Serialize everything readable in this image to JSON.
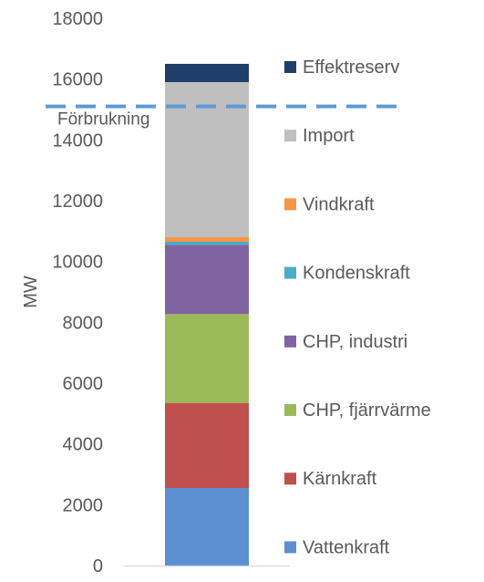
{
  "chart_data": {
    "type": "bar",
    "stacked": true,
    "title": "",
    "xlabel": "",
    "ylabel": "MW",
    "ylim": [
      0,
      18000
    ],
    "yticks": [
      0,
      2000,
      4000,
      6000,
      8000,
      10000,
      12000,
      14000,
      16000,
      18000
    ],
    "grid": false,
    "legend_position": "right",
    "series": [
      {
        "name": "Vattenkraft",
        "value": 2550,
        "color": "#5B8FD1"
      },
      {
        "name": "Kärnkraft",
        "value": 2800,
        "color": "#C0504D"
      },
      {
        "name": "CHP, fjärrvärme",
        "value": 2920,
        "color": "#9BBB59"
      },
      {
        "name": "CHP, industri",
        "value": 2280,
        "color": "#8064A2"
      },
      {
        "name": "Kondenskraft",
        "value": 100,
        "color": "#4BACC6"
      },
      {
        "name": "Vindkraft",
        "value": 150,
        "color": "#F79646"
      },
      {
        "name": "Import",
        "value": 5100,
        "color": "#BFBFBF"
      },
      {
        "name": "Effektreserv",
        "value": 600,
        "color": "#1F3F6B"
      }
    ],
    "reference_line": {
      "label": "Förbrukning",
      "value": 15100,
      "color": "#5B9BD5",
      "style": "dashed"
    }
  }
}
